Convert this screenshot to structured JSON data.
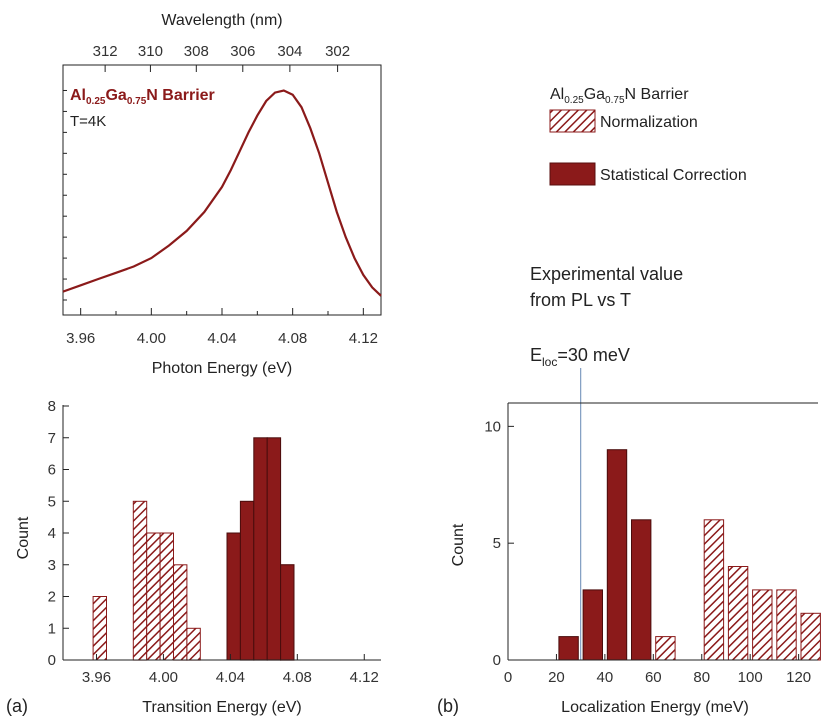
{
  "colors": {
    "red": "#8b1a1a",
    "ref_line": "#7f9cc0",
    "axis": "#222222"
  },
  "top_panel": {
    "label_sub": {
      "al": "Al",
      "x1": "0.25",
      "ga": "Ga",
      "x2": "0.75",
      "tail": "N Barrier"
    },
    "temperature": "T=4K"
  },
  "legend": {
    "title": {
      "al": "Al",
      "x1": "0.25",
      "ga": "Ga",
      "x2": "0.75",
      "tail": "N Barrier"
    },
    "items": [
      {
        "label": "Normalization",
        "fill": "hatched"
      },
      {
        "label": "Statistical Correction",
        "fill": "solid"
      }
    ]
  },
  "annotation": {
    "line1": "Experimental value",
    "line2": "from PL vs T",
    "eloc_main": "E",
    "eloc_sub": "loc",
    "eloc_tail": "=30 meV"
  },
  "panel_labels": {
    "a": "(a)",
    "b": "(b)"
  },
  "chart_data": [
    {
      "type": "line",
      "xlabel": "Photon Energy (eV)",
      "x2label": "Wavelength (nm)",
      "xlim": [
        3.95,
        4.13
      ],
      "x_ticks": [
        "3.96",
        "4.00",
        "4.04",
        "4.08",
        "4.12"
      ],
      "x_tick_values": [
        3.96,
        4.0,
        4.04,
        4.08,
        4.12
      ],
      "x2_ticks": [
        "312",
        "310",
        "308",
        "306",
        "304",
        "302"
      ],
      "x2_tick_values": [
        312,
        310,
        308,
        306,
        304,
        302
      ],
      "ylim": [
        0,
        1.05
      ],
      "series": [
        {
          "x": [
            3.95,
            3.96,
            3.97,
            3.98,
            3.99,
            4.0,
            4.01,
            4.02,
            4.03,
            4.04,
            4.045,
            4.05,
            4.055,
            4.06,
            4.065,
            4.07,
            4.075,
            4.08,
            4.085,
            4.09,
            4.095,
            4.1,
            4.105,
            4.11,
            4.115,
            4.12,
            4.125,
            4.13
          ],
          "y": [
            0.04,
            0.07,
            0.1,
            0.13,
            0.16,
            0.2,
            0.26,
            0.33,
            0.42,
            0.54,
            0.62,
            0.71,
            0.8,
            0.88,
            0.95,
            0.99,
            1.0,
            0.98,
            0.92,
            0.82,
            0.7,
            0.56,
            0.42,
            0.3,
            0.2,
            0.12,
            0.06,
            0.02
          ]
        }
      ]
    },
    {
      "type": "bar",
      "xlabel": "Transition Energy (eV)",
      "ylabel": "Count",
      "xlim": [
        3.94,
        4.13
      ],
      "ylim": [
        0,
        8
      ],
      "x_ticks": [
        "3.96",
        "4.00",
        "4.04",
        "4.08",
        "4.12"
      ],
      "x_tick_values": [
        3.96,
        4.0,
        4.04,
        4.08,
        4.12
      ],
      "y_ticks": [
        "0",
        "1",
        "2",
        "3",
        "4",
        "5",
        "6",
        "7",
        "8"
      ],
      "y_tick_values": [
        0,
        1,
        2,
        3,
        4,
        5,
        6,
        7,
        8
      ],
      "bar_width": 0.008,
      "series": [
        {
          "fill": "hatched",
          "x": [
            3.962,
            3.986,
            3.994,
            4.002,
            4.01,
            4.018,
            4.034,
            4.074
          ],
          "values": [
            2,
            5,
            4,
            4,
            3,
            1,
            0,
            3
          ]
        },
        {
          "fill": "solid",
          "x": [
            4.042,
            4.05,
            4.058,
            4.066,
            4.074
          ],
          "values": [
            4,
            5,
            7,
            7,
            3
          ]
        }
      ]
    },
    {
      "type": "bar",
      "xlabel": "Localization Energy (meV)",
      "ylabel": "Count",
      "xlim": [
        0,
        128
      ],
      "ylim": [
        0,
        11
      ],
      "x_ticks": [
        "0",
        "20",
        "40",
        "60",
        "80",
        "100",
        "120"
      ],
      "x_tick_values": [
        0,
        20,
        40,
        60,
        80,
        100,
        120
      ],
      "y_ticks": [
        "0",
        "5",
        "10"
      ],
      "y_tick_values": [
        0,
        5,
        10
      ],
      "bar_width": 8,
      "reference_line_x": 30,
      "series": [
        {
          "fill": "solid",
          "x": [
            25,
            35,
            45,
            55
          ],
          "values": [
            1,
            3,
            9,
            6
          ]
        },
        {
          "fill": "hatched",
          "x": [
            65,
            85,
            95,
            105,
            115,
            125
          ],
          "values": [
            1,
            6,
            4,
            3,
            3,
            2
          ]
        }
      ]
    }
  ]
}
